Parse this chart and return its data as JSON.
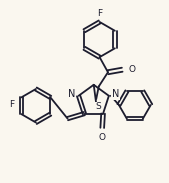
{
  "background_color": "#faf7ef",
  "line_color": "#1c1c2e",
  "line_width": 1.3,
  "font_size": 6.5,
  "figsize": [
    1.69,
    1.83
  ],
  "dpi": 100,
  "xlim": [
    0,
    10
  ],
  "ylim": [
    0,
    10.8
  ]
}
